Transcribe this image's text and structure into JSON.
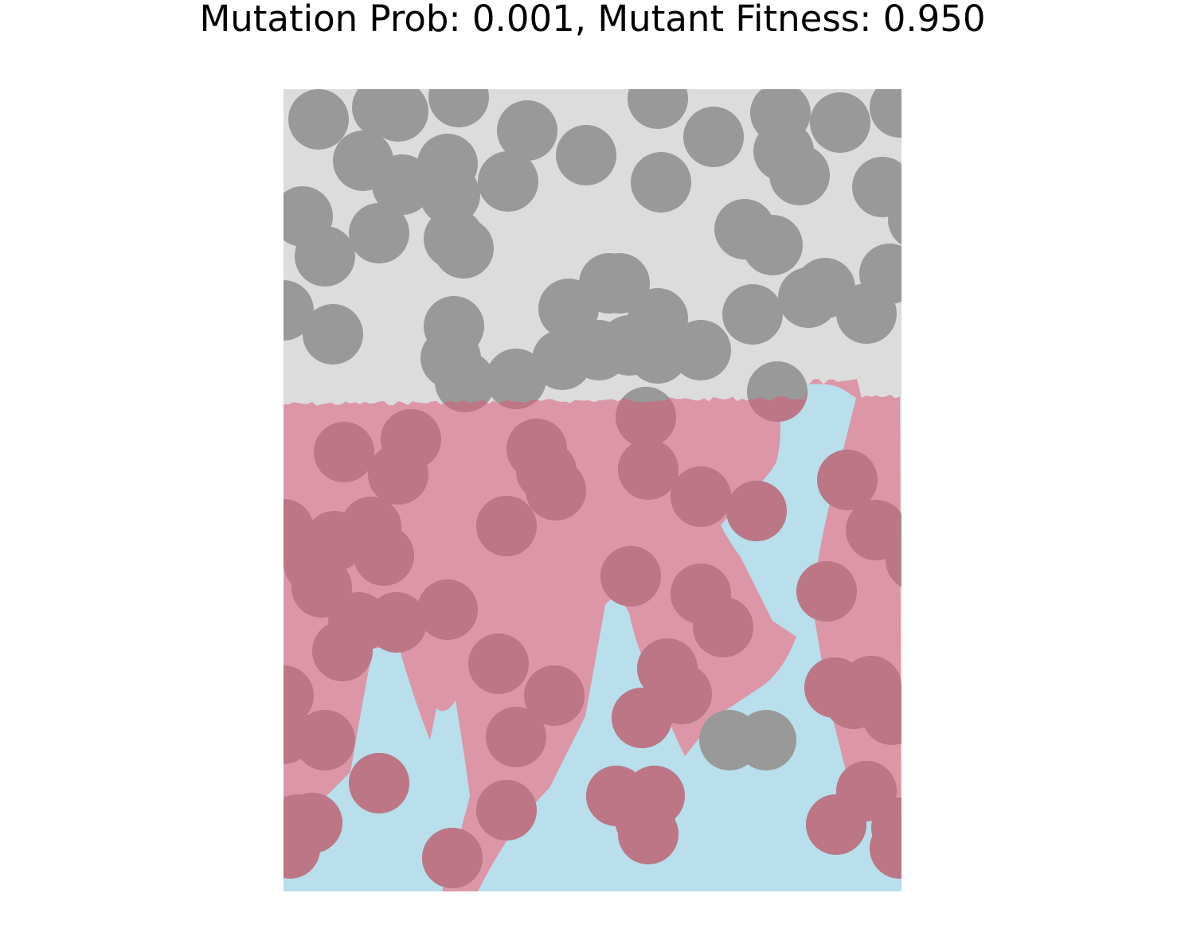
{
  "figure": {
    "title": "Mutation Prob: 0.001, Mutant Fitness: 0.950"
  },
  "chart_data": {
    "type": "other",
    "title": "Mutation Prob: 0.001, Mutant Fitness: 0.950",
    "legend": "none",
    "grid": false,
    "colors": {
      "background": "#dcdcdc",
      "wild_type": "#dc96a8",
      "mutant": "#b8dfeb",
      "obstacle_in_empty": "#999999",
      "obstacle_in_wild_type": "#bc7686"
    }
  }
}
